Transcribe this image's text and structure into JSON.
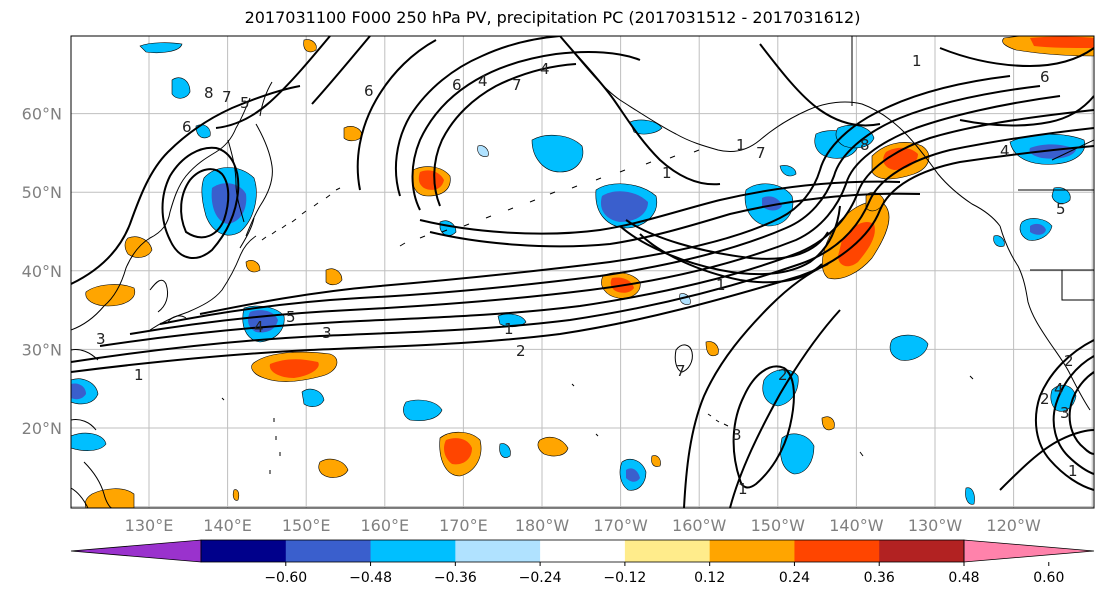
{
  "title": "2017031100 F000 250 hPa PV, precipitation PC (2017031512 - 2017031612)",
  "map": {
    "lat_labels": [
      {
        "text": "60°N",
        "lat": 60
      },
      {
        "text": "50°N",
        "lat": 50
      },
      {
        "text": "40°N",
        "lat": 40
      },
      {
        "text": "30°N",
        "lat": 30
      },
      {
        "text": "20°N",
        "lat": 20
      }
    ],
    "lon_labels": [
      {
        "text": "130°E",
        "lon": 130
      },
      {
        "text": "140°E",
        "lon": 140
      },
      {
        "text": "150°E",
        "lon": 150
      },
      {
        "text": "160°E",
        "lon": 160
      },
      {
        "text": "170°E",
        "lon": 170
      },
      {
        "text": "180°W",
        "lon": 180
      },
      {
        "text": "170°W",
        "lon": 190
      },
      {
        "text": "160°W",
        "lon": 200
      },
      {
        "text": "150°W",
        "lon": 210
      },
      {
        "text": "140°W",
        "lon": 220
      },
      {
        "text": "130°W",
        "lon": 230
      },
      {
        "text": "120°W",
        "lon": 240
      }
    ],
    "contour_labels": [
      "6",
      "8",
      "7",
      "5",
      "6",
      "4",
      "7",
      "6",
      "4",
      "1",
      "1",
      "7",
      "8",
      "1",
      "6",
      "4",
      "5",
      "2",
      "1",
      "5",
      "4",
      "3",
      "3",
      "1",
      "2",
      "1",
      "3",
      "2",
      "1",
      "2",
      "4",
      "3",
      "1",
      "7"
    ]
  },
  "colorbar": {
    "colors": [
      "#9a32cd",
      "#00008b",
      "#3a5fcd",
      "#00bfff",
      "#b0e2ff",
      "#ffffff",
      "#ffec8b",
      "#ffa500",
      "#ff4500",
      "#b22222",
      "#ff82ab"
    ],
    "ticks": [
      "−0.60",
      "−0.48",
      "−0.36",
      "−0.24",
      "−0.12",
      "0.12",
      "0.24",
      "0.36",
      "0.48",
      "0.60"
    ]
  },
  "legend_colors": {
    "land_outline": "#000000",
    "grid": "#bfbfbf"
  }
}
